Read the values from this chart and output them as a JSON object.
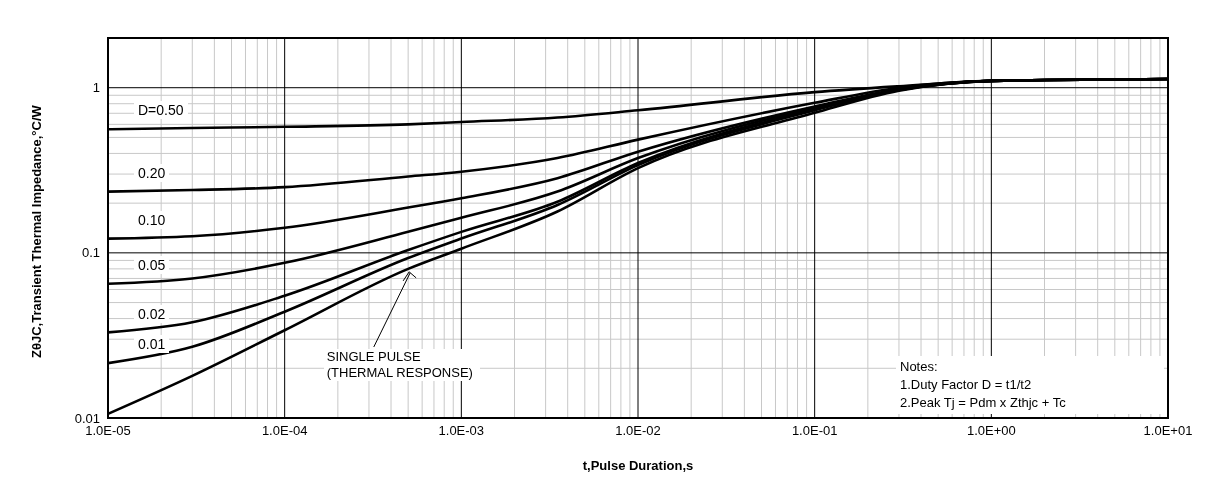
{
  "chart_data": {
    "type": "line",
    "xlabel": "t,Pulse Duration,s",
    "ylabel": "ZθJC,Transient Thermal Impedance,°C/W",
    "log": "xy",
    "grid": true,
    "legend": false,
    "marker": "none",
    "line_style": "solid",
    "x": [
      1e-05,
      3e-05,
      0.0001,
      0.0005,
      0.001,
      0.0035,
      0.01,
      0.1,
      0.3,
      1,
      10
    ],
    "series": [
      {
        "name": "D=0.50",
        "color": "#000000",
        "values": [
          0.56,
          0.57,
          0.58,
          0.6,
          0.62,
          0.66,
          0.73,
          0.94,
          1.02,
          1.1,
          1.13
        ]
      },
      {
        "name": "0.20",
        "color": "#000000",
        "values": [
          0.235,
          0.24,
          0.25,
          0.29,
          0.31,
          0.375,
          0.485,
          0.81,
          1.0,
          1.1,
          1.13
        ]
      },
      {
        "name": "0.10",
        "color": "#000000",
        "values": [
          0.122,
          0.126,
          0.142,
          0.188,
          0.214,
          0.283,
          0.41,
          0.77,
          0.98,
          1.1,
          1.13
        ]
      },
      {
        "name": "0.05",
        "color": "#000000",
        "values": [
          0.065,
          0.07,
          0.087,
          0.134,
          0.163,
          0.235,
          0.375,
          0.755,
          0.97,
          1.1,
          1.13
        ]
      },
      {
        "name": "0.02",
        "color": "#000000",
        "values": [
          0.033,
          0.038,
          0.055,
          0.104,
          0.134,
          0.204,
          0.35,
          0.74,
          0.97,
          1.1,
          1.13
        ]
      },
      {
        "name": "0.01",
        "color": "#000000",
        "values": [
          0.0215,
          0.027,
          0.044,
          0.093,
          0.122,
          0.195,
          0.34,
          0.73,
          0.97,
          1.1,
          1.13
        ]
      },
      {
        "name": "SINGLE PULSE (THERMAL RESPONSE)",
        "color": "#000000",
        "values": [
          0.0106,
          0.018,
          0.034,
          0.08,
          0.106,
          0.178,
          0.326,
          0.705,
          0.96,
          1.1,
          1.13
        ]
      }
    ],
    "xlim": [
      1e-05,
      10
    ],
    "xticks": [
      {
        "value": 1e-05,
        "label": "1.0E-05"
      },
      {
        "value": 0.0001,
        "label": "1.0E-04"
      },
      {
        "value": 0.001,
        "label": "1.0E-03"
      },
      {
        "value": 0.01,
        "label": "1.0E-02"
      },
      {
        "value": 0.1,
        "label": "1.0E-01"
      },
      {
        "value": 1,
        "label": "1.0E+00"
      },
      {
        "value": 10,
        "label": "1.0E+01"
      }
    ],
    "ylim": [
      0.01,
      2
    ],
    "yticks": [
      0.01,
      0.1,
      1
    ],
    "annotations": [
      "Notes:",
      "1.Duty Factor D = t1/t2",
      "2.Peak Tj = Pdm x Zthjc + Tc"
    ]
  }
}
